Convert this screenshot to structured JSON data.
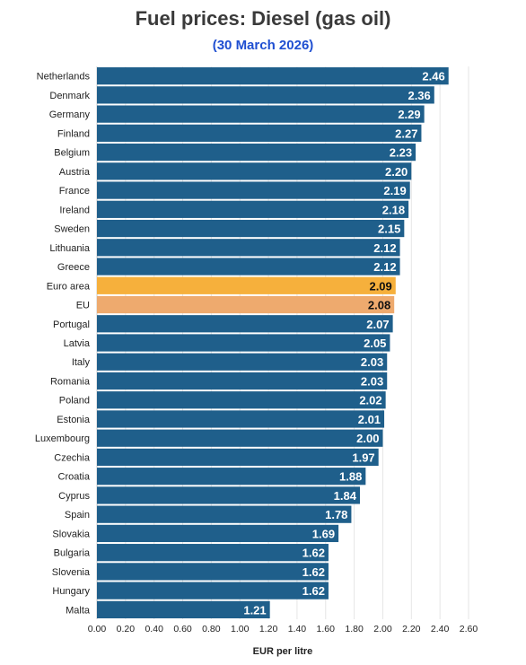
{
  "title": "Fuel prices: Diesel (gas oil)",
  "subtitle": "(30 March 2026)",
  "colors": {
    "bar": "#1f5f8b",
    "euro_area": "#f6b03c",
    "eu": "#eeaa6e",
    "title": "#3a3a3a",
    "subtitle": "#1f4fd1",
    "grid": "#e6e6e6"
  },
  "chart_data": {
    "type": "bar",
    "orientation": "horizontal",
    "title": "Fuel prices: Diesel (gas oil)",
    "subtitle": "(30 March 2026)",
    "xlabel": "EUR per litre",
    "ylabel": "",
    "xlim": [
      0,
      2.6
    ],
    "xticks": [
      "0.00",
      "0.20",
      "0.40",
      "0.60",
      "0.80",
      "1.00",
      "1.20",
      "1.40",
      "1.60",
      "1.80",
      "2.00",
      "2.20",
      "2.40",
      "2.60"
    ],
    "grid": true,
    "categories": [
      "Netherlands",
      "Denmark",
      "Germany",
      "Finland",
      "Belgium",
      "Austria",
      "France",
      "Ireland",
      "Sweden",
      "Lithuania",
      "Greece",
      "Euro area",
      "EU",
      "Portugal",
      "Latvia",
      "Italy",
      "Romania",
      "Poland",
      "Estonia",
      "Luxembourg",
      "Czechia",
      "Croatia",
      "Cyprus",
      "Spain",
      "Slovakia",
      "Bulgaria",
      "Slovenia",
      "Hungary",
      "Malta"
    ],
    "values": [
      2.46,
      2.36,
      2.29,
      2.27,
      2.23,
      2.2,
      2.19,
      2.18,
      2.15,
      2.12,
      2.12,
      2.09,
      2.08,
      2.07,
      2.05,
      2.03,
      2.03,
      2.02,
      2.01,
      2.0,
      1.97,
      1.88,
      1.84,
      1.78,
      1.69,
      1.62,
      1.62,
      1.62,
      1.21
    ],
    "value_labels": [
      "2.46",
      "2.36",
      "2.29",
      "2.27",
      "2.23",
      "2.20",
      "2.19",
      "2.18",
      "2.15",
      "2.12",
      "2.12",
      "2.09",
      "2.08",
      "2.07",
      "2.05",
      "2.03",
      "2.03",
      "2.02",
      "2.01",
      "2.00",
      "1.97",
      "1.88",
      "1.84",
      "1.78",
      "1.69",
      "1.62",
      "1.62",
      "1.62",
      "1.21"
    ],
    "highlights": {
      "Euro area": "euro_area",
      "EU": "eu"
    }
  }
}
